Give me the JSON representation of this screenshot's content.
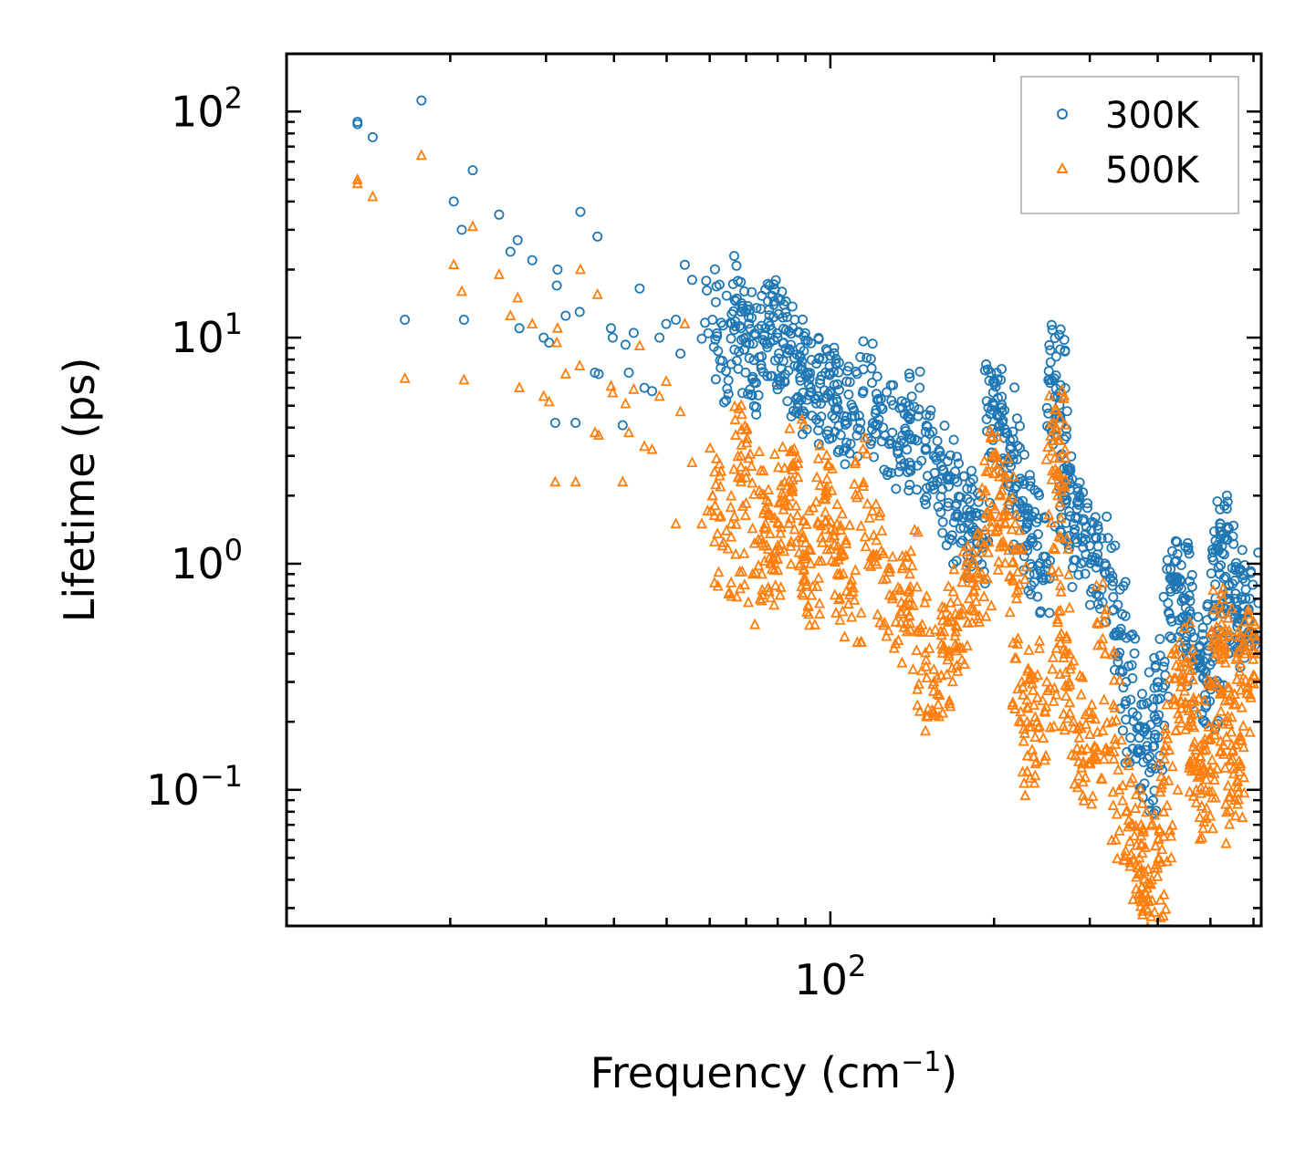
{
  "chart_data": {
    "type": "scatter",
    "xscale": "log",
    "yscale": "log",
    "xlim": [
      10,
      620
    ],
    "ylim": [
      0.025,
      180
    ],
    "xlabel": {
      "text": "Frequency (cm",
      "sup": "−1",
      "suffix": ")"
    },
    "ylabel": "Lifetime (ps)",
    "x_tick_labels": [
      {
        "value": 100,
        "base": "10",
        "exp": "2"
      }
    ],
    "y_tick_labels": [
      {
        "value": 100,
        "base": "10",
        "exp": "2"
      },
      {
        "value": 10,
        "base": "10",
        "exp": "1"
      },
      {
        "value": 1,
        "base": "10",
        "exp": "0"
      },
      {
        "value": 0.1,
        "base": "10",
        "exp": "−1"
      }
    ],
    "legend_position": "top-right",
    "series": [
      {
        "name": "300K",
        "marker": "circle",
        "color": "#1f77b4",
        "points": [
          [
            13.5,
            90
          ],
          [
            13.5,
            88
          ],
          [
            14.4,
            77
          ],
          [
            16.5,
            12
          ],
          [
            17.7,
            112
          ],
          [
            20.3,
            40
          ],
          [
            21,
            30
          ],
          [
            21.2,
            12
          ],
          [
            22,
            55
          ],
          [
            24.6,
            35
          ],
          [
            25.8,
            24
          ],
          [
            26.6,
            27
          ],
          [
            26.8,
            11
          ],
          [
            28.3,
            22
          ],
          [
            29.7,
            10
          ],
          [
            30.4,
            9.5
          ],
          [
            31.2,
            4.2
          ],
          [
            31.5,
            20
          ],
          [
            31.4,
            17
          ],
          [
            32.6,
            12.5
          ],
          [
            34,
            4.2
          ],
          [
            34.7,
            36
          ],
          [
            34.6,
            13
          ],
          [
            36.9,
            7
          ],
          [
            37.3,
            28
          ],
          [
            37.5,
            6.9
          ],
          [
            39.5,
            11
          ],
          [
            39.8,
            10
          ],
          [
            41.5,
            4.1
          ],
          [
            42,
            9.3
          ],
          [
            42.6,
            7
          ],
          [
            43.5,
            10.5
          ],
          [
            44.6,
            16.5
          ],
          [
            45.5,
            6
          ],
          [
            47,
            5.8
          ],
          [
            48.5,
            10
          ],
          [
            49.9,
            11.5
          ],
          [
            52,
            12
          ],
          [
            53,
            8.5
          ],
          [
            54,
            21
          ],
          [
            55.7,
            18
          ],
          [
            58,
            9.9
          ],
          [
            60.7,
            12
          ],
          [
            63.3,
            7.9
          ],
          [
            67,
            14.5
          ],
          [
            68.5,
            11
          ],
          [
            70,
            9.5
          ],
          [
            72,
            6.7
          ],
          [
            74,
            8.2
          ],
          [
            76,
            11
          ],
          [
            78,
            10.8
          ],
          [
            80,
            10
          ],
          [
            82,
            9.5
          ],
          [
            84,
            8.8
          ],
          [
            86,
            7.5
          ],
          [
            88,
            7.3
          ],
          [
            90,
            6.8
          ],
          [
            92,
            6.0
          ],
          [
            95,
            5.5
          ],
          [
            98,
            7.0
          ],
          [
            100,
            5.8
          ],
          [
            103,
            5.2
          ],
          [
            106,
            4.5
          ],
          [
            110,
            4.9
          ],
          [
            115,
            5.8
          ],
          [
            120,
            4.2
          ],
          [
            125,
            4.0
          ],
          [
            130,
            3.8
          ],
          [
            135,
            3.5
          ],
          [
            140,
            3.6
          ],
          [
            145,
            4.5
          ],
          [
            150,
            3.2
          ],
          [
            155,
            3.0
          ],
          [
            160,
            2.7
          ],
          [
            165,
            2.2
          ],
          [
            170,
            1.8
          ],
          [
            175,
            1.6
          ],
          [
            180,
            1.5
          ],
          [
            185,
            1.4
          ],
          [
            190,
            1.3
          ],
          [
            198,
            4.8
          ],
          [
            200,
            5.0
          ],
          [
            205,
            4.5
          ],
          [
            210,
            3.8
          ],
          [
            215,
            3.0
          ],
          [
            220,
            2.2
          ],
          [
            225,
            1.8
          ],
          [
            230,
            1.5
          ],
          [
            235,
            1.3
          ],
          [
            240,
            1.2
          ],
          [
            250,
            1.0
          ],
          [
            258,
            6.6
          ],
          [
            260,
            6.8
          ],
          [
            262,
            5.5
          ],
          [
            265,
            3.0
          ],
          [
            270,
            2.0
          ],
          [
            275,
            1.7
          ],
          [
            280,
            1.5
          ],
          [
            290,
            1.3
          ],
          [
            300,
            1.2
          ],
          [
            310,
            1.1
          ],
          [
            320,
            1.0
          ],
          [
            330,
            0.8
          ],
          [
            340,
            0.5
          ],
          [
            350,
            0.3
          ],
          [
            360,
            0.22
          ],
          [
            370,
            0.17
          ],
          [
            380,
            0.15
          ],
          [
            390,
            0.13
          ],
          [
            400,
            0.2
          ],
          [
            410,
            0.35
          ],
          [
            420,
            0.6
          ],
          [
            430,
            0.8
          ],
          [
            440,
            0.85
          ],
          [
            450,
            0.7
          ],
          [
            460,
            0.5
          ],
          [
            470,
            0.4
          ],
          [
            480,
            0.35
          ],
          [
            490,
            0.33
          ],
          [
            500,
            0.3
          ],
          [
            510,
            0.45
          ],
          [
            520,
            0.9
          ],
          [
            525,
            1.2
          ],
          [
            530,
            1.1
          ],
          [
            540,
            0.8
          ],
          [
            550,
            0.6
          ],
          [
            560,
            0.55
          ],
          [
            570,
            0.6
          ],
          [
            580,
            0.7
          ],
          [
            590,
            0.7
          ]
        ]
      },
      {
        "name": "500K",
        "marker": "triangle",
        "color": "#ff7f0e",
        "points": [
          [
            13.5,
            50
          ],
          [
            13.5,
            48
          ],
          [
            14.4,
            42
          ],
          [
            16.5,
            6.6
          ],
          [
            17.7,
            64
          ],
          [
            20.3,
            21
          ],
          [
            21,
            16
          ],
          [
            21.2,
            6.5
          ],
          [
            22,
            31
          ],
          [
            24.6,
            19
          ],
          [
            25.8,
            12.5
          ],
          [
            26.6,
            15
          ],
          [
            26.8,
            6
          ],
          [
            28.3,
            11.5
          ],
          [
            29.7,
            5.5
          ],
          [
            30.4,
            5.2
          ],
          [
            31.2,
            2.3
          ],
          [
            31.5,
            11
          ],
          [
            31.4,
            9.5
          ],
          [
            32.6,
            6.9
          ],
          [
            34,
            2.3
          ],
          [
            34.7,
            20
          ],
          [
            34.6,
            7.5
          ],
          [
            36.9,
            3.8
          ],
          [
            37.3,
            15.5
          ],
          [
            37.5,
            3.7
          ],
          [
            39.5,
            6.1
          ],
          [
            39.8,
            5.7
          ],
          [
            41.5,
            2.3
          ],
          [
            42,
            5.1
          ],
          [
            42.6,
            3.8
          ],
          [
            43.5,
            5.9
          ],
          [
            44.6,
            9.2
          ],
          [
            45.5,
            3.3
          ],
          [
            47,
            3.2
          ],
          [
            48.5,
            5.5
          ],
          [
            49.9,
            6.4
          ],
          [
            52,
            1.5
          ],
          [
            53,
            4.7
          ],
          [
            54,
            11.5
          ],
          [
            55.7,
            2.8
          ],
          [
            58,
            1.5
          ],
          [
            60.7,
            2.0
          ],
          [
            63.3,
            1.2
          ],
          [
            67,
            1.1
          ],
          [
            68.5,
            3.0
          ],
          [
            70,
            2.4
          ],
          [
            72,
            0.9
          ],
          [
            74,
            2.1
          ],
          [
            76,
            1.5
          ],
          [
            78,
            1.0
          ],
          [
            80,
            1.2
          ],
          [
            82,
            2.0
          ],
          [
            84,
            1.8
          ],
          [
            86,
            2.7
          ],
          [
            88,
            1.0
          ],
          [
            90,
            0.85
          ],
          [
            92,
            1.0
          ],
          [
            95,
            1.5
          ],
          [
            98,
            2.0
          ],
          [
            100,
            1.3
          ],
          [
            103,
            0.9
          ],
          [
            106,
            1.1
          ],
          [
            110,
            0.75
          ],
          [
            115,
            2.2
          ],
          [
            120,
            1.1
          ],
          [
            125,
            0.85
          ],
          [
            130,
            0.7
          ],
          [
            135,
            0.6
          ],
          [
            140,
            0.9
          ],
          [
            145,
            0.5
          ],
          [
            150,
            0.35
          ],
          [
            155,
            0.3
          ],
          [
            160,
            0.32
          ],
          [
            165,
            0.4
          ],
          [
            170,
            0.5
          ],
          [
            175,
            0.6
          ],
          [
            180,
            0.7
          ],
          [
            185,
            0.8
          ],
          [
            190,
            0.9
          ],
          [
            198,
            1.8
          ],
          [
            200,
            2.5
          ],
          [
            205,
            2.0
          ],
          [
            210,
            1.5
          ],
          [
            215,
            1.2
          ],
          [
            220,
            0.7
          ],
          [
            225,
            0.3
          ],
          [
            230,
            0.2
          ],
          [
            235,
            0.15
          ],
          [
            240,
            0.2
          ],
          [
            250,
            0.3
          ],
          [
            258,
            3.5
          ],
          [
            260,
            4.0
          ],
          [
            262,
            2.0
          ],
          [
            265,
            0.8
          ],
          [
            270,
            0.4
          ],
          [
            275,
            0.3
          ],
          [
            280,
            0.2
          ],
          [
            290,
            0.15
          ],
          [
            300,
            0.13
          ],
          [
            310,
            0.15
          ],
          [
            320,
            0.6
          ],
          [
            330,
            0.2
          ],
          [
            340,
            0.1
          ],
          [
            350,
            0.08
          ],
          [
            360,
            0.07
          ],
          [
            370,
            0.05
          ],
          [
            375,
            0.028
          ],
          [
            380,
            0.035
          ],
          [
            390,
            0.04
          ],
          [
            400,
            0.045
          ],
          [
            410,
            0.08
          ],
          [
            420,
            0.15
          ],
          [
            430,
            0.25
          ],
          [
            440,
            0.35
          ],
          [
            450,
            0.3
          ],
          [
            460,
            0.2
          ],
          [
            470,
            0.15
          ],
          [
            480,
            0.12
          ],
          [
            490,
            0.1
          ],
          [
            500,
            0.12
          ],
          [
            510,
            0.2
          ],
          [
            520,
            0.45
          ],
          [
            525,
            0.5
          ],
          [
            530,
            0.4
          ],
          [
            540,
            0.25
          ],
          [
            550,
            0.15
          ],
          [
            555,
            0.09
          ],
          [
            560,
            0.11
          ],
          [
            570,
            0.3
          ],
          [
            580,
            0.4
          ],
          [
            590,
            0.45
          ]
        ]
      }
    ]
  }
}
